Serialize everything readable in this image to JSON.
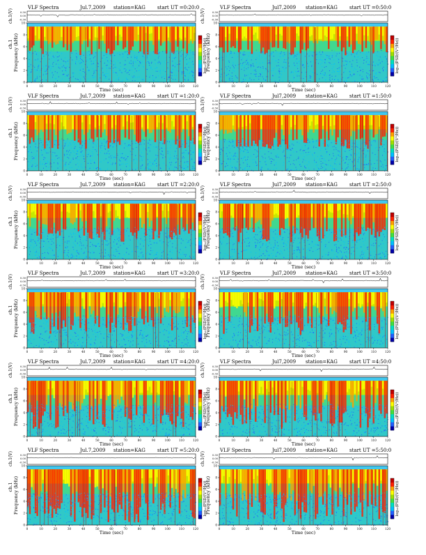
{
  "header": {
    "instrument": "VLF Spectra",
    "date_left": "Jul.7,2009",
    "date_right": "Jul7,2009",
    "station": "station=KAG",
    "start_prefix": "start  UT"
  },
  "axes": {
    "time_label": "Time  (sec)",
    "freq_label": "Frequency  (kHz)",
    "wave_label": "ch.1(V)",
    "ch_label": "ch.1",
    "colorbar_label": "log₁₀(PSD/(V²/Hz))",
    "time_ticks": [
      "0",
      "10",
      "20",
      "30",
      "40",
      "50",
      "60",
      "70",
      "80",
      "90",
      "100",
      "110",
      "120"
    ],
    "freq_ticks": [
      "0",
      "2",
      "4",
      "6",
      "8",
      "10"
    ],
    "wave_ticks": [
      "0.30",
      "0.00",
      "-0.30"
    ]
  },
  "panels": [
    {
      "start_ut": "=0:20:0"
    },
    {
      "start_ut": "=0:50:0"
    },
    {
      "start_ut": "=1:20:0"
    },
    {
      "start_ut": "=1:50:0"
    },
    {
      "start_ut": "=2:20:0"
    },
    {
      "start_ut": "=2:50:0"
    },
    {
      "start_ut": "=3:20:0"
    },
    {
      "start_ut": "=3:50:0"
    },
    {
      "start_ut": "=4:20:0"
    },
    {
      "start_ut": "=4:50:0"
    },
    {
      "start_ut": "=5:20:0"
    },
    {
      "start_ut": "=5:50:0"
    }
  ],
  "colors": {
    "colormap": [
      "#0000aa",
      "#2060ff",
      "#00c0ff",
      "#00e0c0",
      "#40e040",
      "#a0e000",
      "#ffff00",
      "#ffa000",
      "#ff2000",
      "#c00000"
    ],
    "background_band": "#40c8f0"
  },
  "chart_data": {
    "type": "heatmap",
    "grid": "off",
    "panels": 12,
    "x_range_sec": [
      0,
      120
    ],
    "y_range_khz": [
      0,
      10
    ],
    "wave_range_v": [
      -0.3,
      0.3
    ],
    "layout": "6 rows x 2 columns"
  }
}
